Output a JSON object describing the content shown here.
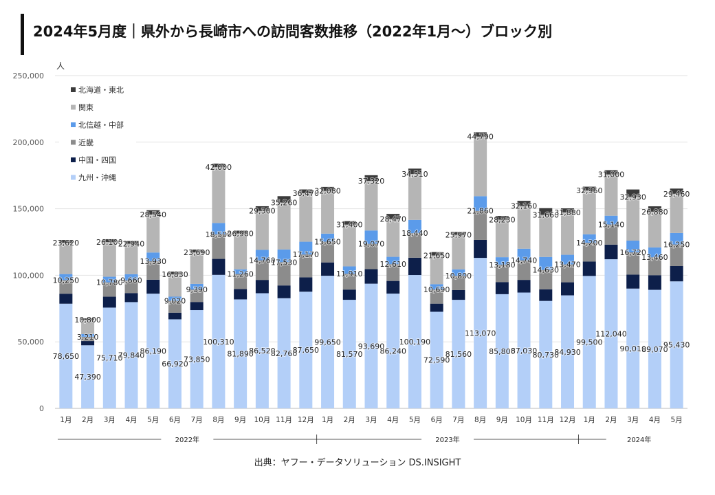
{
  "title": "2024年5月度｜県外から長崎市への訪問客数推移（2022年1月～）ブロック別",
  "source": "出典：ヤフー・データソリューション DS.INSIGHT",
  "colors": {
    "hokkaido_tohoku": "#3b3b3b",
    "kanto": "#b5b5b5",
    "hokushinetsu_chubu": "#5b9bea",
    "kinki": "#8c8c8c",
    "chugoku_shikoku": "#0d1f4a",
    "kyushu_okinawa": "#b3cff8"
  },
  "chart_data": {
    "type": "bar",
    "stacked": true,
    "ylabel": "人",
    "ylim": [
      0,
      250000
    ],
    "yticks": [
      "0",
      "50,000",
      "100,000",
      "150,000",
      "200,000",
      "250,000"
    ],
    "categories": [
      "1月",
      "2月",
      "3月",
      "4月",
      "5月",
      "6月",
      "7月",
      "8月",
      "9月",
      "10月",
      "11月",
      "12月",
      "1月",
      "2月",
      "3月",
      "4月",
      "5月",
      "6月",
      "7月",
      "8月",
      "9月",
      "10月",
      "11月",
      "12月",
      "1月",
      "2月",
      "3月",
      "4月",
      "5月"
    ],
    "year_groups": [
      {
        "label": "2022年",
        "start": 0,
        "end": 11
      },
      {
        "label": "2023年",
        "start": 12,
        "end": 23
      },
      {
        "label": "2024年",
        "start": 24,
        "end": 28
      }
    ],
    "legend": [
      "北海道・東北",
      "関東",
      "北信越・中部",
      "近畿",
      "中国・四国",
      "九州・沖縄"
    ],
    "series": [
      {
        "name": "九州・沖縄",
        "color_key": "kyushu_okinawa",
        "labeled": true,
        "values": [
          78650,
          47390,
          75710,
          79840,
          86190,
          66920,
          73850,
          100310,
          81890,
          86520,
          82760,
          87650,
          99650,
          81570,
          93690,
          86240,
          100190,
          72590,
          81560,
          113070,
          85800,
          87030,
          80730,
          84930,
          99500,
          112040,
          90010,
          89070,
          95430
        ],
        "labels": [
          "78,650",
          "47,390",
          "75,710",
          "79,840",
          "86,190",
          "66,920",
          "73,850",
          "100,310",
          "81,890",
          "86,520",
          "82,760",
          "87,650",
          "99,650",
          "81,570",
          "93,690",
          "86,240",
          "100,190",
          "72,590",
          "81,560",
          "113,070",
          "85,800",
          "87,030",
          "80,730",
          "84,930",
          "99,500",
          "112,040",
          "90,010",
          "89,070",
          "95,430"
        ]
      },
      {
        "name": "中国・四国",
        "color_key": "chugoku_shikoku",
        "labeled": false,
        "values": [
          7500,
          3200,
          8200,
          6800,
          10500,
          5000,
          6100,
          12000,
          7800,
          10000,
          9600,
          10800,
          10000,
          7700,
          10900,
          9500,
          13000,
          6100,
          7300,
          13500,
          9100,
          9500,
          8700,
          9800,
          10800,
          11000,
          10500,
          11000,
          11500
        ]
      },
      {
        "name": "近畿",
        "color_key": "kinki",
        "labeled": true,
        "values": [
          10250,
          3210,
          10780,
          9660,
          13930,
          9020,
          9390,
          18500,
          11260,
          14760,
          17530,
          17170,
          15650,
          11910,
          19070,
          12610,
          18440,
          10690,
          10800,
          21860,
          13180,
          14740,
          14630,
          13470,
          14200,
          15140,
          16720,
          13460,
          16250
        ],
        "labels": [
          "10,250",
          "3,210",
          "10,780",
          "9,660",
          "13,930",
          "9,020",
          "9,390",
          "18,500",
          "11,260",
          "14,760",
          "17,530",
          "17,170",
          "15,650",
          "11,910",
          "19,070",
          "12,610",
          "18,440",
          "10,690",
          "10,800",
          "21,860",
          "13,180",
          "14,740",
          "14,630",
          "13,470",
          "14,200",
          "15,140",
          "16,720",
          "13,460",
          "16,250"
        ]
      },
      {
        "name": "北信越・中部",
        "color_key": "hokushinetsu_chubu",
        "labeled": false,
        "values": [
          4500,
          2000,
          4200,
          4500,
          6500,
          3000,
          4200,
          8500,
          3500,
          7800,
          9500,
          9600,
          6000,
          5500,
          10000,
          5500,
          10000,
          3900,
          4800,
          11000,
          5500,
          8700,
          9700,
          7200,
          6300,
          6600,
          8800,
          7400,
          8600
        ]
      },
      {
        "name": "関東",
        "color_key": "kanto",
        "labeled": true,
        "values": [
          23620,
          10800,
          26100,
          22940,
          28540,
          16830,
          23690,
          42000,
          26980,
          29300,
          35260,
          36470,
          32080,
          31400,
          37320,
          28470,
          34510,
          21650,
          25970,
          44790,
          28230,
          32160,
          31660,
          31880,
          32960,
          31000,
          32930,
          26880,
          29460
        ],
        "labels": [
          "23,620",
          "10,800",
          "26,100",
          "22,940",
          "28,540",
          "16,830",
          "23,690",
          "42,000",
          "26,980",
          "29,300",
          "35,260",
          "36,470",
          "32,080",
          "31,400",
          "37,320",
          "28,470",
          "34,510",
          "21,650",
          "25,970",
          "44,790",
          "28,230",
          "32,160",
          "31,660",
          "31,880",
          "32,960",
          "31,000",
          "32,930",
          "26,880",
          "29,460"
        ]
      },
      {
        "name": "北海道・東北",
        "color_key": "hokkaido_tohoku",
        "labeled": false,
        "values": [
          2000,
          1000,
          2100,
          2000,
          3200,
          2000,
          2100,
          2600,
          2100,
          3500,
          4800,
          2800,
          3000,
          2600,
          4200,
          3800,
          4000,
          2500,
          2100,
          3200,
          2800,
          3800,
          5000,
          3000,
          2800,
          3200,
          5500,
          4000,
          3900
        ]
      }
    ]
  }
}
